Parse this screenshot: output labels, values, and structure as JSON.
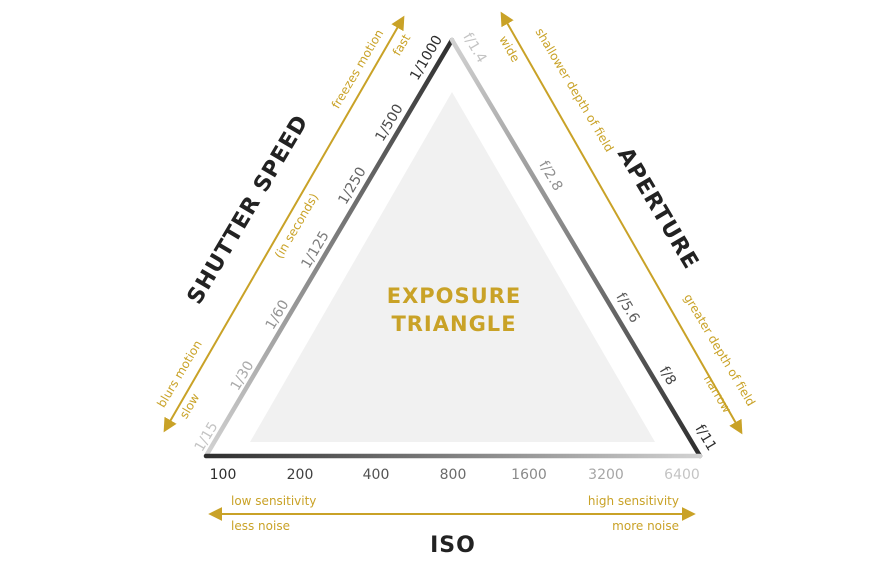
{
  "center_title": {
    "line1": "EXPOSURE",
    "line2": "TRIANGLE"
  },
  "shutter": {
    "title": "SHUTTER SPEED",
    "unit_note": "(in seconds)",
    "values": [
      "1/15",
      "1/30",
      "1/60",
      "1/125",
      "1/250",
      "1/500",
      "1/1000"
    ],
    "arrow_fast_top": "freezes motion",
    "arrow_fast_bottom": "fast",
    "arrow_slow_top": "blurs motion",
    "arrow_slow_bottom": "slow"
  },
  "aperture": {
    "title": "APERTURE",
    "values": [
      "f/1.4",
      "f/2.8",
      "f/5.6",
      "f/8",
      "f/11"
    ],
    "arrow_wide_top": "shallower depth of field",
    "arrow_wide_bottom": "wide",
    "arrow_narrow_top": "greater depth of field",
    "arrow_narrow_bottom": "narrow"
  },
  "iso": {
    "title": "ISO",
    "values": [
      "100",
      "200",
      "400",
      "800",
      "1600",
      "3200",
      "6400"
    ],
    "left_top": "low sensitivity",
    "left_bottom": "less noise",
    "right_top": "high sensitivity",
    "right_bottom": "more noise"
  },
  "colors": {
    "accent": "#c9a227",
    "inner_fill": "#f1f1f1",
    "dark": "#333333",
    "light": "#c8c8c8"
  }
}
